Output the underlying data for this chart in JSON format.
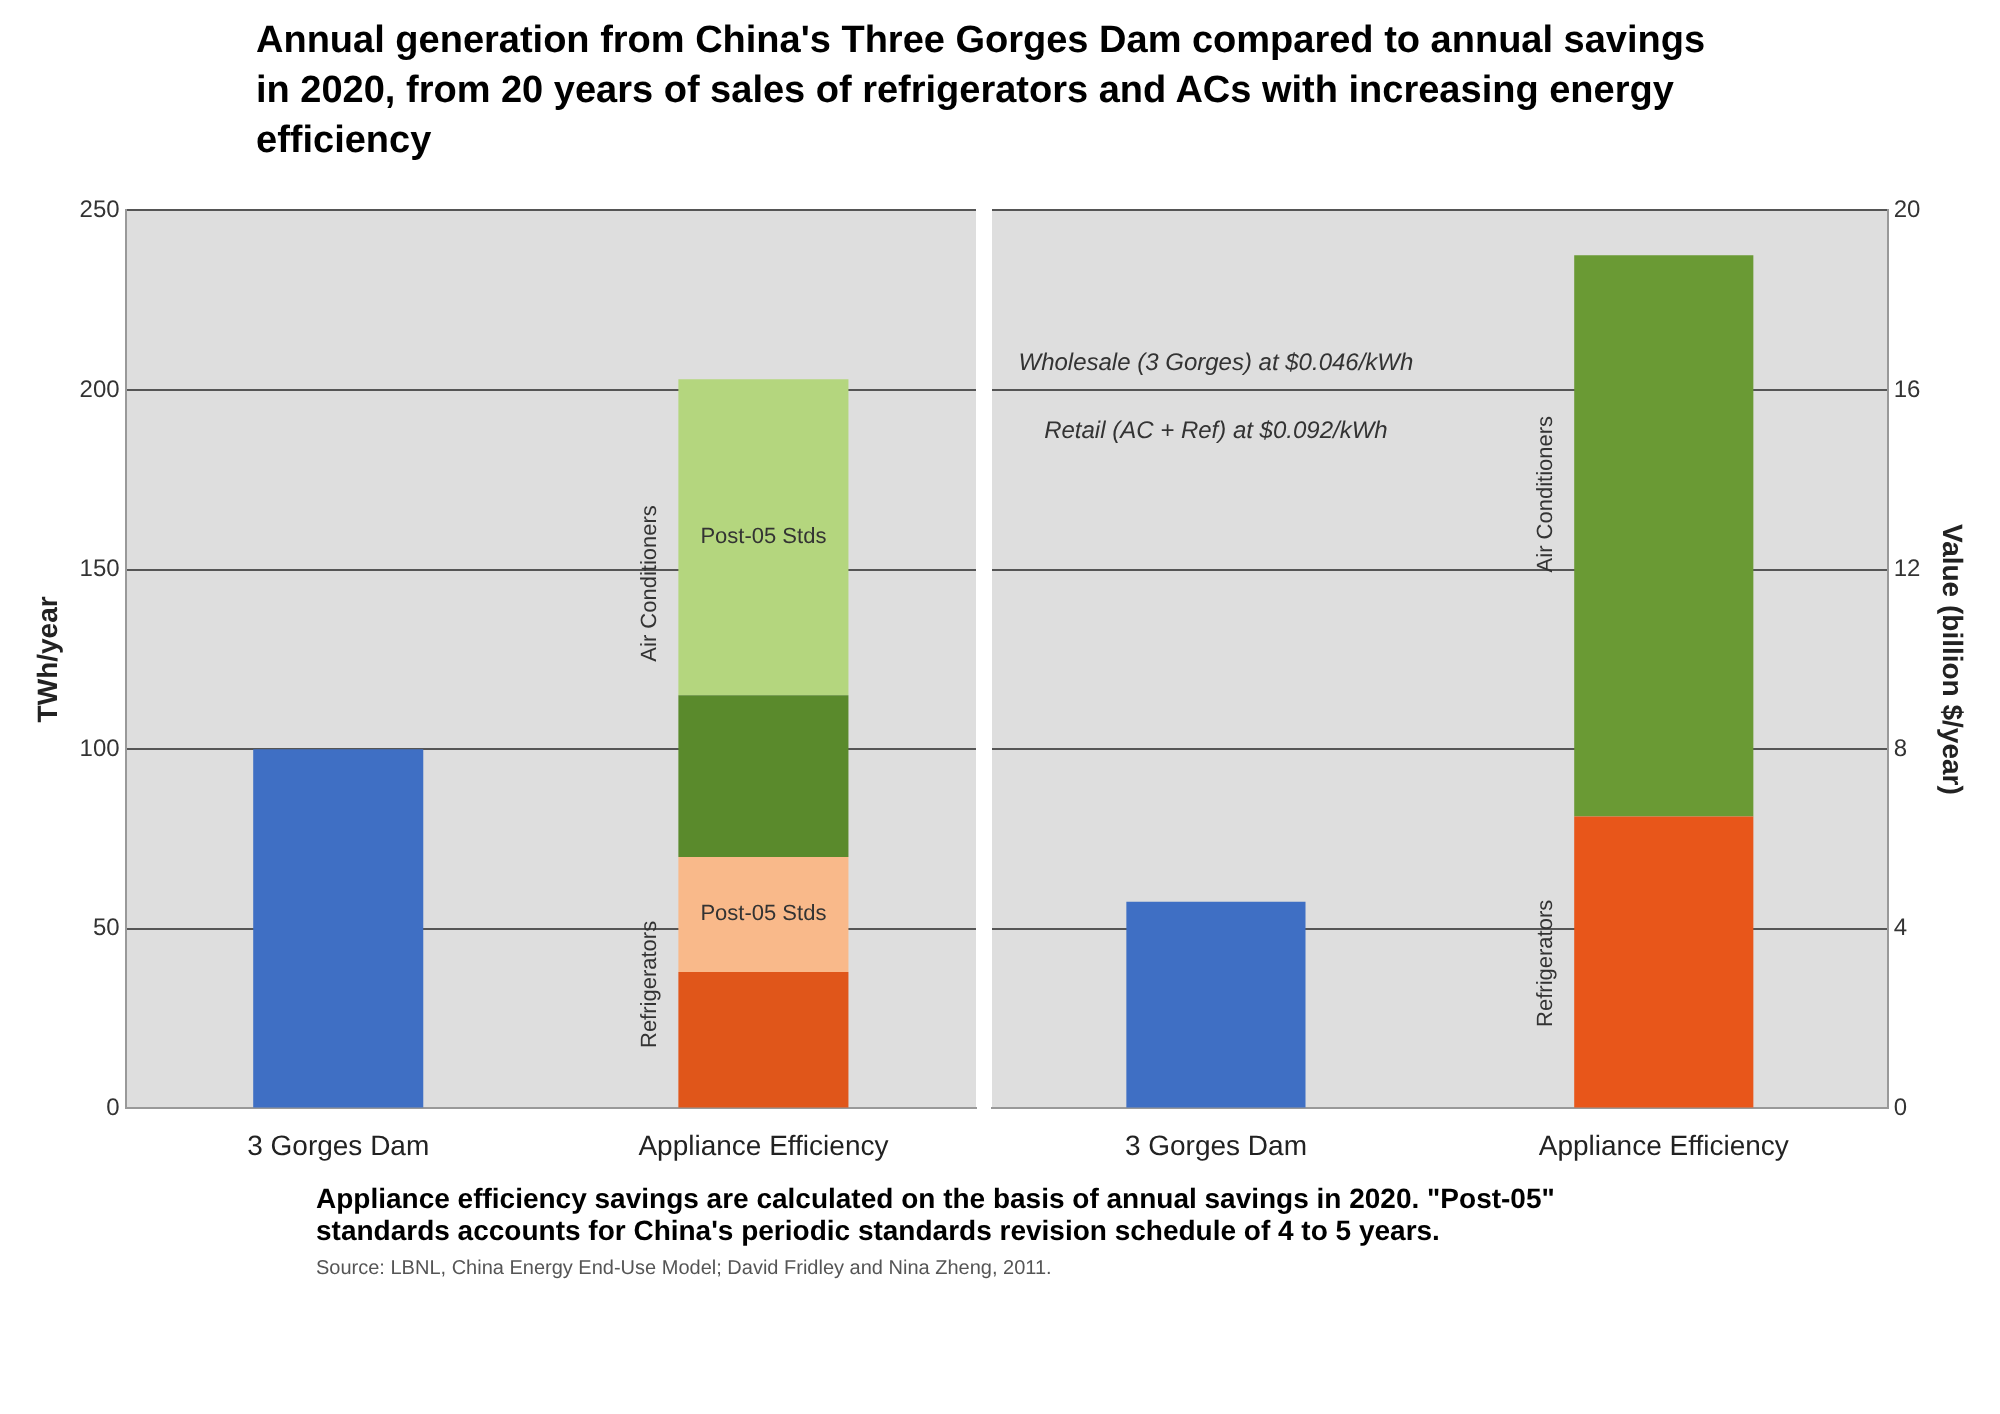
{
  "chart_data": [
    {
      "type": "bar",
      "title": "Annual generation from China's Three Gorges Dam compared to annual savings in 2020, from 20 years of sales of refrigerators and ACs with increasing energy efficiency",
      "ylabel": "TWh/year",
      "categories": [
        "3 Gorges Dam",
        "Appliance Efficiency"
      ],
      "stacked": true,
      "grid": "y",
      "ylim": [
        0,
        250
      ],
      "yticks": [
        0,
        50,
        100,
        150,
        200,
        250
      ],
      "series": [
        {
          "color": "#3f6fc4",
          "values": [
            100,
            null
          ]
        },
        {
          "color": "#e0561a",
          "values": [
            null,
            38
          ]
        },
        {
          "name": "Post-05 Stds",
          "color": "#f9b98a",
          "values": [
            null,
            32
          ]
        },
        {
          "color": "#5a8a2c",
          "values": [
            null,
            45
          ]
        },
        {
          "name": "Post-05 Stds",
          "color": "#b4d67e",
          "values": [
            null,
            88
          ]
        }
      ],
      "annotations": [
        "Refrigerators",
        "Air Conditioners",
        "Appliance efficiency savings are calculated on the basis of annual savings in 2020. \"Post-05\" standards accounts for China's periodic standards revision schedule of 4 to 5 years.",
        "Source: LBNL, China Energy End-Use Model; David Fridley and Nina Zheng, 2011."
      ]
    },
    {
      "type": "bar",
      "y2label": "Value (billion $/year)",
      "categories": [
        "3 Gorges Dam",
        "Appliance Efficiency"
      ],
      "stacked": true,
      "grid": "y",
      "y2lim": [
        0,
        20
      ],
      "y2ticks": [
        0,
        4,
        8,
        12,
        16,
        20
      ],
      "series": [
        {
          "color": "#3f6fc4",
          "axis": "y2",
          "values": [
            4.6,
            null
          ]
        },
        {
          "color": "#e8561a",
          "axis": "y2",
          "values": [
            null,
            6.5
          ]
        },
        {
          "color": "#6a9a34",
          "axis": "y2",
          "values": [
            null,
            12.5
          ]
        }
      ],
      "annotations": [
        "Wholesale (3 Gorges) at $0.046/kWh",
        "Retail (AC + Ref) at $0.092/kWh",
        "Refrigerators",
        "Air Conditioners"
      ]
    }
  ]
}
